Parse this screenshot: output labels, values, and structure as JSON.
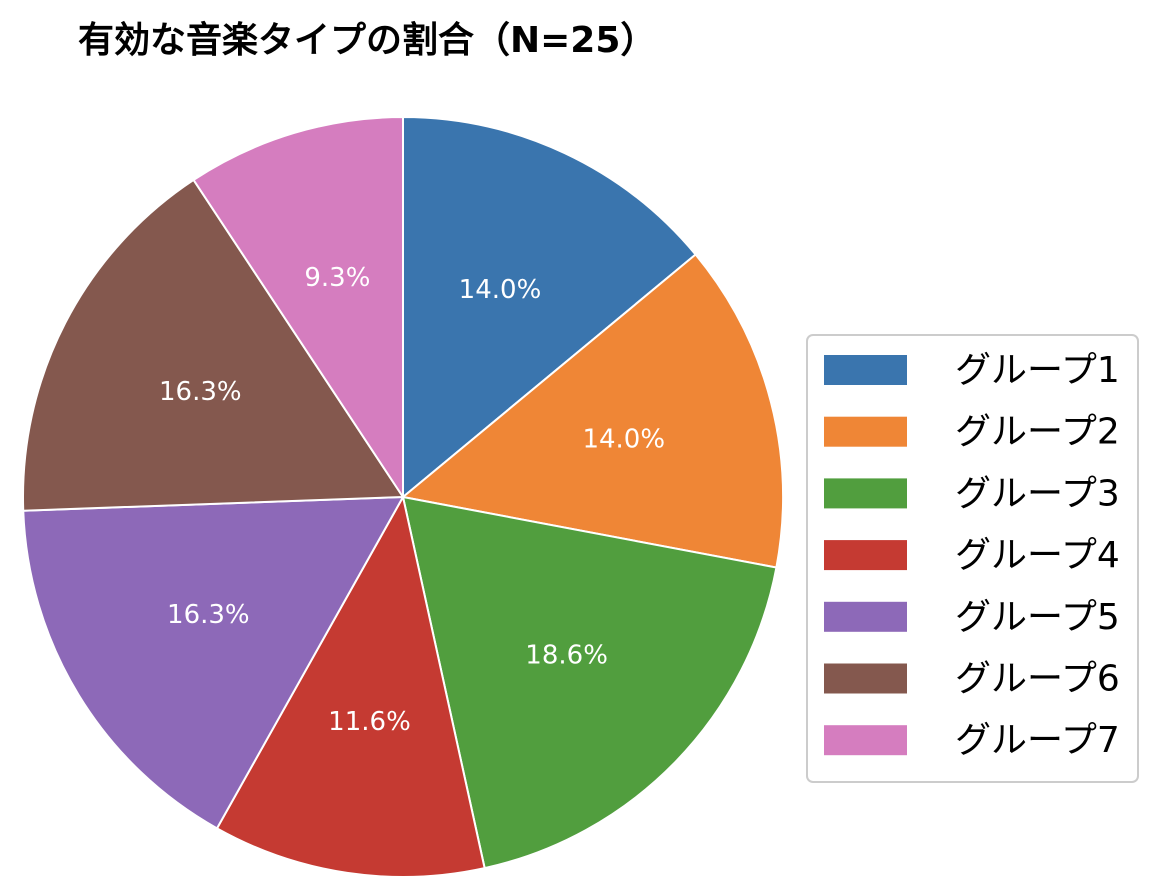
{
  "chart_data": {
    "type": "pie",
    "title": "有効な音楽タイプの割合（N=25）",
    "categories": [
      "グループ1",
      "グループ2",
      "グループ3",
      "グループ4",
      "グループ5",
      "グループ6",
      "グループ7"
    ],
    "values": [
      14.0,
      14.0,
      18.6,
      11.6,
      16.3,
      16.3,
      9.3
    ],
    "value_labels": [
      "14.0%",
      "14.0%",
      "18.6%",
      "11.6%",
      "16.3%",
      "16.3%",
      "9.3%"
    ],
    "colors": [
      "#3a75ae",
      "#ef8636",
      "#519e3e",
      "#c53a32",
      "#8d69b8",
      "#84584e",
      "#d57dbf"
    ],
    "legend": "right"
  }
}
